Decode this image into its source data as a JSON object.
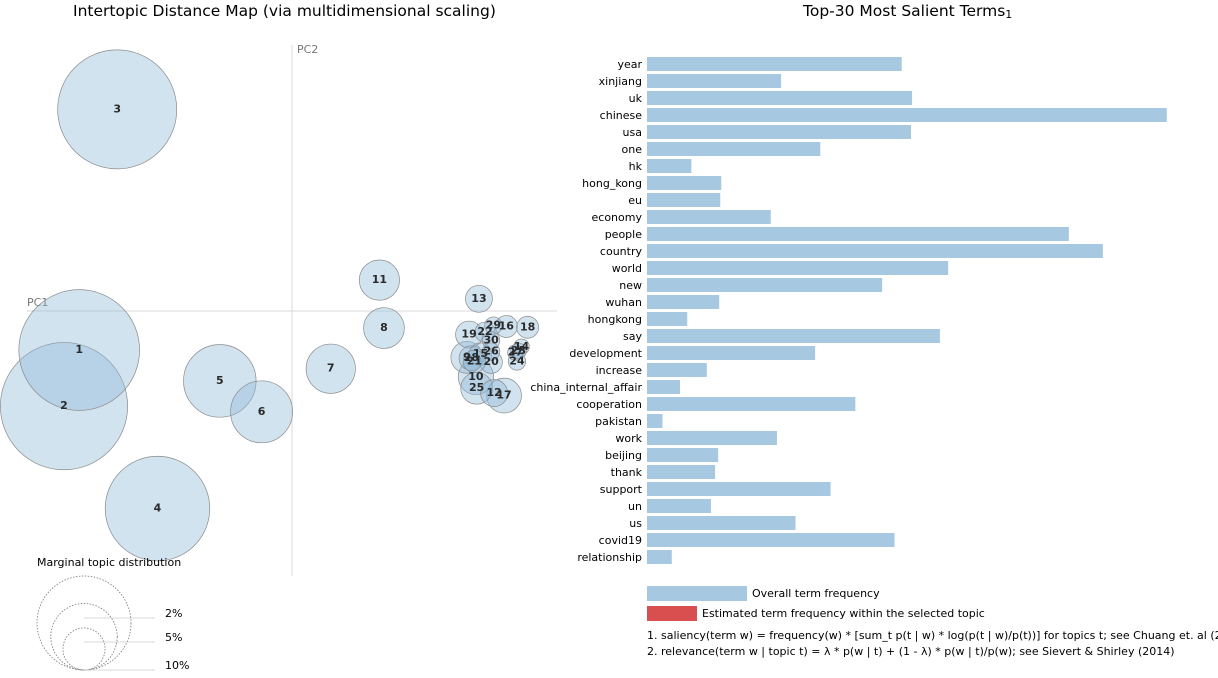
{
  "colors": {
    "overall_bar": "#a6c8e0",
    "topic_bar": "#d94e4e",
    "circle_fill": "#8fb9d9"
  },
  "chart_data": [
    {
      "type": "scatter",
      "title": "Intertopic Distance Map (via multidimensional scaling)",
      "xlabel": "PC1",
      "ylabel": "PC2",
      "topics": [
        {
          "label": "1",
          "x": -0.28,
          "y": -0.048,
          "size": 7.2
        },
        {
          "label": "2",
          "x": -0.3,
          "y": -0.117,
          "size": 8.0
        },
        {
          "label": "3",
          "x": -0.23,
          "y": 0.248,
          "size": 7.0
        },
        {
          "label": "4",
          "x": -0.177,
          "y": -0.243,
          "size": 5.4
        },
        {
          "label": "5",
          "x": -0.095,
          "y": -0.086,
          "size": 2.6
        },
        {
          "label": "6",
          "x": -0.04,
          "y": -0.124,
          "size": 1.9
        },
        {
          "label": "7",
          "x": 0.051,
          "y": -0.071,
          "size": 1.2
        },
        {
          "label": "8",
          "x": 0.121,
          "y": -0.021,
          "size": 0.82
        },
        {
          "label": "9",
          "x": 0.23,
          "y": -0.057,
          "size": 0.5
        },
        {
          "label": "10",
          "x": 0.242,
          "y": -0.081,
          "size": 0.62
        },
        {
          "label": "11",
          "x": 0.115,
          "y": 0.038,
          "size": 0.8
        },
        {
          "label": "12",
          "x": 0.266,
          "y": -0.101,
          "size": 0.36
        },
        {
          "label": "13",
          "x": 0.246,
          "y": 0.015,
          "size": 0.36
        },
        {
          "label": "14",
          "x": 0.302,
          "y": -0.044,
          "size": 0.12
        },
        {
          "label": "15",
          "x": 0.248,
          "y": -0.053,
          "size": 0.25
        },
        {
          "label": "16",
          "x": 0.282,
          "y": -0.019,
          "size": 0.24
        },
        {
          "label": "17",
          "x": 0.279,
          "y": -0.104,
          "size": 0.6
        },
        {
          "label": "18",
          "x": 0.31,
          "y": -0.02,
          "size": 0.24
        },
        {
          "label": "19",
          "x": 0.233,
          "y": -0.029,
          "size": 0.36
        },
        {
          "label": "20",
          "x": 0.262,
          "y": -0.063,
          "size": 0.25
        },
        {
          "label": "21",
          "x": 0.24,
          "y": -0.062,
          "size": 0.25
        },
        {
          "label": "22",
          "x": 0.254,
          "y": -0.026,
          "size": 0.2
        },
        {
          "label": "23",
          "x": 0.298,
          "y": -0.049,
          "size": 0.12
        },
        {
          "label": "24",
          "x": 0.296,
          "y": -0.062,
          "size": 0.15
        },
        {
          "label": "25",
          "x": 0.243,
          "y": -0.095,
          "size": 0.5
        },
        {
          "label": "26",
          "x": 0.262,
          "y": -0.05,
          "size": 0.15
        },
        {
          "label": "27",
          "x": 0.294,
          "y": -0.051,
          "size": 0.12
        },
        {
          "label": "28",
          "x": 0.236,
          "y": -0.058,
          "size": 0.3
        },
        {
          "label": "29",
          "x": 0.265,
          "y": -0.018,
          "size": 0.15
        },
        {
          "label": "30",
          "x": 0.262,
          "y": -0.036,
          "size": 0.15
        }
      ],
      "marginal": {
        "title": "Marginal topic distribution",
        "levels": [
          {
            "label": "2%",
            "value": 2
          },
          {
            "label": "5%",
            "value": 5
          },
          {
            "label": "10%",
            "value": 10
          }
        ]
      }
    },
    {
      "type": "bar",
      "title": "Top-30 Most Salient Terms",
      "title_sub": "1",
      "categories": [
        "year",
        "xinjiang",
        "uk",
        "chinese",
        "usa",
        "one",
        "hk",
        "hong_kong",
        "eu",
        "economy",
        "people",
        "country",
        "world",
        "new",
        "wuhan",
        "hongkong",
        "say",
        "development",
        "increase",
        "china_internal_affair",
        "cooperation",
        "pakistan",
        "work",
        "beijing",
        "thank",
        "support",
        "un",
        "us",
        "covid19",
        "relationship"
      ],
      "series": [
        {
          "values": [
            2470,
            1300,
            2570,
            5040,
            2560,
            1680,
            430,
            720,
            710,
            1200,
            4090,
            4420,
            2920,
            2280,
            700,
            390,
            2840,
            1630,
            580,
            320,
            2020,
            150,
            1260,
            690,
            660,
            1780,
            620,
            1440,
            2400,
            240
          ]
        }
      ],
      "xlim": [
        0,
        5100
      ],
      "legend": [
        {
          "label": "Overall term frequency",
          "color": "#a6c8e0"
        },
        {
          "label": "Estimated term frequency within the selected topic",
          "color": "#d94e4e"
        }
      ],
      "footnotes": [
        "1. saliency(term w) = frequency(w) * [sum_t p(t | w) * log(p(t | w)/p(t))] for topics t; see Chuang et. al (2012)",
        "2. relevance(term w | topic t) = λ * p(w | t) + (1 - λ) * p(w | t)/p(w); see Sievert & Shirley (2014)"
      ]
    }
  ]
}
